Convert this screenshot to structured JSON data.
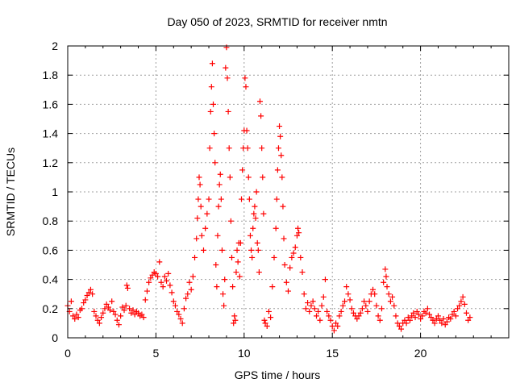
{
  "chart_data": {
    "type": "scatter",
    "title": "Day 050 of 2023, SRMTID for receiver nmtn",
    "xlabel": "GPS time / hours",
    "ylabel": "SRMTID / TECUs",
    "xlim": [
      0,
      25
    ],
    "ylim": [
      0,
      2
    ],
    "xticks": [
      0,
      5,
      10,
      15,
      20
    ],
    "xtick_labels": [
      "0",
      "5",
      "10",
      "15",
      "20"
    ],
    "yticks": [
      0,
      0.2,
      0.4,
      0.6,
      0.8,
      1.0,
      1.2,
      1.4,
      1.6,
      1.8,
      2.0
    ],
    "ytick_labels": [
      "0",
      "0.2",
      "0.4",
      "0.6",
      "0.8",
      "1",
      "1.2",
      "1.4",
      "1.6",
      "1.8",
      "2"
    ],
    "grid": true,
    "marker": "+",
    "series": [
      {
        "name": "SRMTID",
        "color": "#ff0000",
        "points": [
          [
            0.0,
            0.22
          ],
          [
            0.1,
            0.18
          ],
          [
            0.2,
            0.25
          ],
          [
            0.3,
            0.15
          ],
          [
            0.4,
            0.13
          ],
          [
            0.5,
            0.16
          ],
          [
            0.6,
            0.14
          ],
          [
            0.7,
            0.19
          ],
          [
            0.8,
            0.2
          ],
          [
            0.9,
            0.24
          ],
          [
            1.0,
            0.26
          ],
          [
            1.1,
            0.29
          ],
          [
            1.2,
            0.31
          ],
          [
            1.3,
            0.33
          ],
          [
            1.4,
            0.3
          ],
          [
            1.5,
            0.18
          ],
          [
            1.6,
            0.15
          ],
          [
            1.7,
            0.12
          ],
          [
            1.8,
            0.1
          ],
          [
            1.9,
            0.14
          ],
          [
            2.0,
            0.17
          ],
          [
            2.1,
            0.2
          ],
          [
            2.2,
            0.23
          ],
          [
            2.3,
            0.21
          ],
          [
            2.4,
            0.19
          ],
          [
            2.5,
            0.25
          ],
          [
            2.6,
            0.18
          ],
          [
            2.7,
            0.16
          ],
          [
            2.8,
            0.12
          ],
          [
            2.9,
            0.09
          ],
          [
            3.0,
            0.15
          ],
          [
            3.1,
            0.21
          ],
          [
            3.2,
            0.19
          ],
          [
            3.3,
            0.22
          ],
          [
            3.35,
            0.36
          ],
          [
            3.4,
            0.34
          ],
          [
            3.5,
            0.2
          ],
          [
            3.6,
            0.17
          ],
          [
            3.7,
            0.19
          ],
          [
            3.8,
            0.16
          ],
          [
            3.9,
            0.18
          ],
          [
            4.0,
            0.17
          ],
          [
            4.1,
            0.15
          ],
          [
            4.2,
            0.16
          ],
          [
            4.3,
            0.14
          ],
          [
            4.4,
            0.26
          ],
          [
            4.5,
            0.32
          ],
          [
            4.6,
            0.38
          ],
          [
            4.7,
            0.41
          ],
          [
            4.8,
            0.43
          ],
          [
            4.9,
            0.45
          ],
          [
            5.0,
            0.44
          ],
          [
            5.1,
            0.42
          ],
          [
            5.2,
            0.52
          ],
          [
            5.3,
            0.38
          ],
          [
            5.4,
            0.35
          ],
          [
            5.5,
            0.42
          ],
          [
            5.6,
            0.39
          ],
          [
            5.7,
            0.44
          ],
          [
            5.8,
            0.36
          ],
          [
            5.9,
            0.31
          ],
          [
            6.0,
            0.25
          ],
          [
            6.1,
            0.22
          ],
          [
            6.2,
            0.18
          ],
          [
            6.3,
            0.16
          ],
          [
            6.4,
            0.13
          ],
          [
            6.5,
            0.1
          ],
          [
            6.6,
            0.2
          ],
          [
            6.7,
            0.27
          ],
          [
            6.8,
            0.3
          ],
          [
            6.9,
            0.38
          ],
          [
            7.0,
            0.33
          ],
          [
            7.1,
            0.42
          ],
          [
            7.2,
            0.55
          ],
          [
            7.3,
            0.68
          ],
          [
            7.35,
            0.82
          ],
          [
            7.4,
            0.95
          ],
          [
            7.45,
            1.1
          ],
          [
            7.5,
            1.05
          ],
          [
            7.55,
            0.9
          ],
          [
            7.6,
            0.7
          ],
          [
            7.7,
            0.6
          ],
          [
            7.8,
            0.75
          ],
          [
            7.9,
            0.85
          ],
          [
            8.0,
            0.95
          ],
          [
            8.05,
            1.3
          ],
          [
            8.1,
            1.55
          ],
          [
            8.15,
            1.72
          ],
          [
            8.2,
            1.88
          ],
          [
            8.25,
            1.6
          ],
          [
            8.3,
            1.4
          ],
          [
            8.35,
            1.2
          ],
          [
            8.4,
            0.5
          ],
          [
            8.45,
            0.35
          ],
          [
            8.5,
            0.7
          ],
          [
            8.55,
            0.9
          ],
          [
            8.6,
            1.05
          ],
          [
            8.65,
            1.12
          ],
          [
            8.7,
            0.95
          ],
          [
            8.75,
            0.6
          ],
          [
            8.8,
            0.3
          ],
          [
            8.85,
            0.22
          ],
          [
            8.9,
            0.4
          ],
          [
            8.95,
            1.85
          ],
          [
            9.0,
            1.99
          ],
          [
            9.05,
            1.78
          ],
          [
            9.1,
            1.55
          ],
          [
            9.15,
            1.3
          ],
          [
            9.2,
            1.1
          ],
          [
            9.25,
            0.8
          ],
          [
            9.3,
            0.55
          ],
          [
            9.35,
            0.35
          ],
          [
            9.4,
            0.1
          ],
          [
            9.45,
            0.15
          ],
          [
            9.5,
            0.12
          ],
          [
            9.55,
            0.45
          ],
          [
            9.6,
            0.6
          ],
          [
            9.65,
            0.52
          ],
          [
            9.7,
            0.65
          ],
          [
            9.75,
            0.42
          ],
          [
            9.8,
            0.65
          ],
          [
            9.85,
            0.95
          ],
          [
            9.9,
            1.15
          ],
          [
            9.95,
            1.3
          ],
          [
            10.0,
            1.42
          ],
          [
            10.05,
            1.78
          ],
          [
            10.1,
            1.72
          ],
          [
            10.15,
            1.42
          ],
          [
            10.2,
            1.3
          ],
          [
            10.25,
            1.1
          ],
          [
            10.3,
            0.95
          ],
          [
            10.35,
            0.7
          ],
          [
            10.4,
            0.6
          ],
          [
            10.45,
            0.55
          ],
          [
            10.5,
            0.75
          ],
          [
            10.55,
            0.85
          ],
          [
            10.6,
            0.9
          ],
          [
            10.65,
            0.82
          ],
          [
            10.7,
            1.0
          ],
          [
            10.75,
            0.65
          ],
          [
            10.8,
            0.6
          ],
          [
            10.85,
            0.45
          ],
          [
            10.9,
            1.62
          ],
          [
            10.95,
            1.52
          ],
          [
            11.0,
            1.3
          ],
          [
            11.05,
            1.1
          ],
          [
            11.1,
            0.85
          ],
          [
            11.15,
            0.12
          ],
          [
            11.2,
            0.1
          ],
          [
            11.3,
            0.08
          ],
          [
            11.4,
            0.18
          ],
          [
            11.5,
            0.14
          ],
          [
            11.6,
            0.35
          ],
          [
            11.7,
            0.55
          ],
          [
            11.8,
            0.75
          ],
          [
            11.85,
            0.95
          ],
          [
            11.9,
            1.15
          ],
          [
            11.95,
            1.3
          ],
          [
            12.0,
            1.45
          ],
          [
            12.05,
            1.38
          ],
          [
            12.1,
            1.25
          ],
          [
            12.15,
            1.1
          ],
          [
            12.2,
            0.9
          ],
          [
            12.25,
            0.68
          ],
          [
            12.3,
            0.5
          ],
          [
            12.4,
            0.38
          ],
          [
            12.5,
            0.32
          ],
          [
            12.6,
            0.48
          ],
          [
            12.7,
            0.55
          ],
          [
            12.8,
            0.58
          ],
          [
            12.9,
            0.62
          ],
          [
            13.0,
            0.7
          ],
          [
            13.05,
            0.75
          ],
          [
            13.1,
            0.72
          ],
          [
            13.2,
            0.55
          ],
          [
            13.3,
            0.45
          ],
          [
            13.4,
            0.3
          ],
          [
            13.5,
            0.2
          ],
          [
            13.6,
            0.24
          ],
          [
            13.7,
            0.18
          ],
          [
            13.8,
            0.22
          ],
          [
            13.9,
            0.25
          ],
          [
            14.0,
            0.2
          ],
          [
            14.1,
            0.15
          ],
          [
            14.2,
            0.18
          ],
          [
            14.3,
            0.12
          ],
          [
            14.4,
            0.22
          ],
          [
            14.5,
            0.28
          ],
          [
            14.6,
            0.4
          ],
          [
            14.7,
            0.18
          ],
          [
            14.8,
            0.15
          ],
          [
            14.9,
            0.12
          ],
          [
            15.0,
            0.08
          ],
          [
            15.1,
            0.05
          ],
          [
            15.2,
            0.1
          ],
          [
            15.3,
            0.08
          ],
          [
            15.4,
            0.15
          ],
          [
            15.5,
            0.18
          ],
          [
            15.6,
            0.22
          ],
          [
            15.7,
            0.25
          ],
          [
            15.8,
            0.35
          ],
          [
            15.9,
            0.3
          ],
          [
            16.0,
            0.26
          ],
          [
            16.1,
            0.2
          ],
          [
            16.2,
            0.17
          ],
          [
            16.3,
            0.15
          ],
          [
            16.4,
            0.13
          ],
          [
            16.5,
            0.15
          ],
          [
            16.6,
            0.17
          ],
          [
            16.7,
            0.2
          ],
          [
            16.8,
            0.25
          ],
          [
            16.9,
            0.22
          ],
          [
            17.0,
            0.18
          ],
          [
            17.1,
            0.25
          ],
          [
            17.2,
            0.3
          ],
          [
            17.3,
            0.33
          ],
          [
            17.4,
            0.3
          ],
          [
            17.5,
            0.22
          ],
          [
            17.6,
            0.15
          ],
          [
            17.7,
            0.12
          ],
          [
            17.8,
            0.2
          ],
          [
            17.9,
            0.38
          ],
          [
            18.0,
            0.47
          ],
          [
            18.05,
            0.42
          ],
          [
            18.1,
            0.35
          ],
          [
            18.2,
            0.3
          ],
          [
            18.3,
            0.25
          ],
          [
            18.4,
            0.28
          ],
          [
            18.5,
            0.22
          ],
          [
            18.6,
            0.15
          ],
          [
            18.7,
            0.1
          ],
          [
            18.8,
            0.08
          ],
          [
            18.9,
            0.06
          ],
          [
            19.0,
            0.1
          ],
          [
            19.1,
            0.12
          ],
          [
            19.2,
            0.1
          ],
          [
            19.3,
            0.14
          ],
          [
            19.4,
            0.12
          ],
          [
            19.5,
            0.15
          ],
          [
            19.6,
            0.17
          ],
          [
            19.7,
            0.14
          ],
          [
            19.8,
            0.18
          ],
          [
            19.9,
            0.16
          ],
          [
            20.0,
            0.13
          ],
          [
            20.1,
            0.15
          ],
          [
            20.2,
            0.18
          ],
          [
            20.3,
            0.17
          ],
          [
            20.4,
            0.2
          ],
          [
            20.5,
            0.16
          ],
          [
            20.6,
            0.14
          ],
          [
            20.7,
            0.12
          ],
          [
            20.8,
            0.1
          ],
          [
            20.9,
            0.13
          ],
          [
            21.0,
            0.15
          ],
          [
            21.1,
            0.12
          ],
          [
            21.2,
            0.1
          ],
          [
            21.3,
            0.13
          ],
          [
            21.4,
            0.09
          ],
          [
            21.5,
            0.11
          ],
          [
            21.6,
            0.14
          ],
          [
            21.7,
            0.13
          ],
          [
            21.8,
            0.16
          ],
          [
            21.9,
            0.18
          ],
          [
            22.0,
            0.15
          ],
          [
            22.1,
            0.2
          ],
          [
            22.2,
            0.22
          ],
          [
            22.3,
            0.25
          ],
          [
            22.4,
            0.28
          ],
          [
            22.5,
            0.23
          ],
          [
            22.6,
            0.17
          ],
          [
            22.7,
            0.12
          ],
          [
            22.8,
            0.14
          ]
        ]
      }
    ]
  }
}
